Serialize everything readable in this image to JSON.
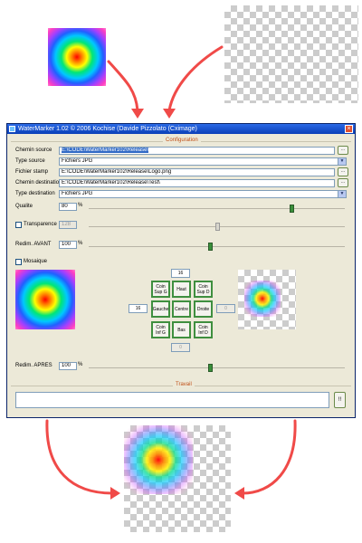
{
  "colors": {
    "arrow": "#f04a48",
    "title_bar": "#0a3fb8",
    "group_title": "#c05018",
    "position_button_border": "#3f8f3f"
  },
  "window": {
    "title": "WaterMarker 1.02 © 2006 Kochise (Davide Pizzolato (Cximage)",
    "close_icon": "close-icon",
    "app_icon": "watermarker-icon"
  },
  "configuration": {
    "group_title": "Configuration",
    "chemin_source": {
      "label": "Chemin source",
      "value": "E:\\CODE\\WaterMarker102\\Release\\"
    },
    "type_source": {
      "label": "Type source",
      "value": "Fichiers JPG"
    },
    "fichier_stamp": {
      "label": "Fichier stamp",
      "value": "E:\\CODE\\WaterMarker102\\Release\\Logo.png"
    },
    "chemin_destination": {
      "label": "Chemin destination",
      "value": "E:\\CODE\\WaterMarker102\\Release\\Test\\"
    },
    "type_destination": {
      "label": "Type destination",
      "value": "Fichiers JPG"
    },
    "browse_label": "...",
    "qualite": {
      "label": "Qualite",
      "value": "80",
      "unit": "%",
      "level": 0.8
    },
    "transparence": {
      "label": "Transparence",
      "value": "128",
      "checked": false,
      "level": 0.5
    },
    "redim_avant": {
      "label": "Redim. AVANT",
      "value": "100",
      "unit": "%",
      "level": 0.5
    },
    "mosaique": {
      "label": "Mosaique",
      "checked": false
    },
    "offset_top": "16",
    "offset_left": "16",
    "offset_right": "0",
    "offset_bottom": "0",
    "positions": [
      {
        "label": "Coin Sup G"
      },
      {
        "label": "Haut"
      },
      {
        "label": "Coin Sup D"
      },
      {
        "label": "Gauche"
      },
      {
        "label": "Centre"
      },
      {
        "label": "Droite"
      },
      {
        "label": "Coin Inf G"
      },
      {
        "label": "Bas"
      },
      {
        "label": "Coin Inf D"
      }
    ],
    "redim_apres": {
      "label": "Redim. APRES",
      "value": "100",
      "unit": "%",
      "level": 0.5
    }
  },
  "travail": {
    "group_title": "Travail",
    "run_label": "!!",
    "progress": 0
  }
}
